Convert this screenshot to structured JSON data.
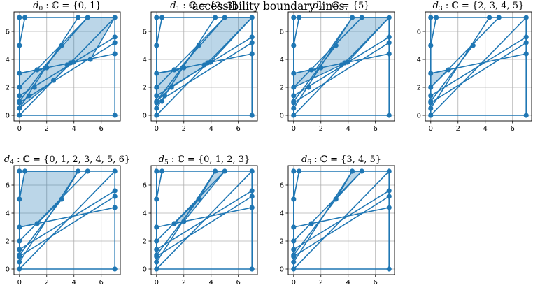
{
  "caption": "accessibility boundary lines.",
  "chart_data": {
    "type": "line",
    "grid": true,
    "xlim": [
      -0.4,
      7.4
    ],
    "ylim": [
      -0.4,
      7.4
    ],
    "xticks": [
      0,
      2,
      4,
      6
    ],
    "yticks": [
      0,
      2,
      4,
      6
    ],
    "colors": {
      "line": "#1f77b4",
      "fill": "#1f77b4",
      "grid": "#b0b0b0"
    },
    "lines": [
      [
        [
          0,
          0
        ],
        [
          7,
          0
        ]
      ],
      [
        [
          0,
          0
        ],
        [
          0,
          7
        ]
      ],
      [
        [
          0,
          7
        ],
        [
          7,
          7
        ]
      ],
      [
        [
          7,
          0
        ],
        [
          7,
          7
        ]
      ],
      [
        [
          0,
          5
        ],
        [
          0.4,
          7
        ]
      ],
      [
        [
          0,
          1
        ],
        [
          3.1,
          5
        ]
      ],
      [
        [
          0,
          0.5
        ],
        [
          4.3,
          7
        ]
      ],
      [
        [
          0,
          2
        ],
        [
          5,
          7
        ]
      ],
      [
        [
          0,
          0
        ],
        [
          7,
          7
        ]
      ],
      [
        [
          0,
          1.4
        ],
        [
          7,
          5.6
        ]
      ],
      [
        [
          0,
          0.9
        ],
        [
          7,
          5.2
        ]
      ],
      [
        [
          0,
          3
        ],
        [
          7,
          4.4
        ]
      ]
    ],
    "points": [
      [
        0,
        0
      ],
      [
        0,
        0.5
      ],
      [
        0,
        0.9
      ],
      [
        0,
        1
      ],
      [
        0,
        1.4
      ],
      [
        0,
        2
      ],
      [
        0,
        3
      ],
      [
        0,
        5
      ],
      [
        0,
        7
      ],
      [
        0.4,
        7
      ],
      [
        4.3,
        7
      ],
      [
        5,
        7
      ],
      [
        7,
        7
      ],
      [
        7,
        0
      ],
      [
        7,
        4.4
      ],
      [
        7,
        5.2
      ],
      [
        7,
        5.6
      ],
      [
        1.3,
        3.25
      ],
      [
        3.1,
        5
      ]
    ],
    "panels": [
      {
        "title": "d_0 : ℂ = {0, 1}",
        "sub": "0",
        "set": "{0, 1}",
        "regions": [
          [
            [
              0,
              3
            ],
            [
              1.2,
              3.25
            ],
            [
              1.6,
              3.25
            ],
            [
              5,
              7
            ],
            [
              7,
              7
            ],
            [
              5.2,
              4
            ],
            [
              3.8,
              3.75
            ],
            [
              2.5,
              2.5
            ],
            [
              0,
              0.5
            ]
          ]
        ],
        "extra_points": [
          [
            0.7,
            1.4
          ],
          [
            1.1,
            2
          ],
          [
            2.5,
            2.5
          ],
          [
            2,
            3.4
          ],
          [
            3.5,
            3.6
          ],
          [
            3.75,
            3.75
          ],
          [
            3.95,
            3.8
          ],
          [
            5.2,
            4
          ]
        ]
      },
      {
        "title": "d_1 : ℂ = {2, 3}",
        "sub": "1",
        "set": "{2, 3}",
        "regions": [
          [
            [
              0,
              3
            ],
            [
              1.6,
              3.25
            ],
            [
              5,
              7
            ],
            [
              7,
              7
            ],
            [
              3.95,
              3.8
            ],
            [
              1.1,
              2
            ],
            [
              0,
              1
            ]
          ]
        ],
        "extra_points": [
          [
            1.1,
            2
          ],
          [
            2,
            3.4
          ],
          [
            3.75,
            3.75
          ],
          [
            3.95,
            3.8
          ],
          [
            0.6,
            1.4
          ],
          [
            0.4,
            1
          ],
          [
            3.5,
            3.6
          ]
        ]
      },
      {
        "title": "d_2 : ℂ = {5}",
        "sub": "2",
        "set": "{5}",
        "regions": [
          [
            [
              0,
              3
            ],
            [
              1.2,
              3.25
            ],
            [
              1.6,
              3.25
            ],
            [
              4.3,
              7
            ],
            [
              7,
              7
            ],
            [
              3.95,
              3.8
            ],
            [
              3.5,
              3.6
            ],
            [
              0,
              2
            ]
          ]
        ],
        "extra_points": [
          [
            1.1,
            2
          ],
          [
            2,
            3.4
          ],
          [
            3.75,
            3.75
          ],
          [
            3.95,
            3.8
          ],
          [
            3.5,
            3.6
          ]
        ]
      },
      {
        "title": "d_3 : ℂ = {2, 3, 4, 5}",
        "sub": "3",
        "set": "{2, 3, 4, 5}",
        "regions": [
          [
            [
              0,
              3
            ],
            [
              1.3,
              3.25
            ],
            [
              0,
              2
            ]
          ]
        ],
        "extra_points": []
      },
      {
        "title": "d_4 : ℂ = {0, 1, 2, 3, 4, 5, 6}",
        "sub": "4",
        "set": "{0, 1, 2, 3, 4, 5, 6}",
        "regions": [
          [
            [
              0,
              3
            ],
            [
              1.3,
              3.25
            ],
            [
              3.1,
              5
            ],
            [
              4.3,
              7
            ],
            [
              0.4,
              7
            ],
            [
              0,
              5
            ]
          ]
        ],
        "extra_points": []
      },
      {
        "title": "d_5 : ℂ = {0, 1, 2, 3}",
        "sub": "5",
        "set": "{0, 1, 2, 3}",
        "regions": [
          [
            [
              1.3,
              3.25
            ],
            [
              2,
              3.4
            ],
            [
              5,
              7
            ],
            [
              4.3,
              7
            ],
            [
              3.1,
              5
            ]
          ]
        ],
        "extra_points": [
          [
            2,
            3.4
          ]
        ]
      },
      {
        "title": "d_6 : ℂ = {3, 4, 5}",
        "sub": "6",
        "set": "{3, 4, 5}",
        "regions": [
          [
            [
              3.1,
              5
            ],
            [
              4.3,
              7
            ],
            [
              5,
              7
            ]
          ]
        ],
        "extra_points": []
      }
    ]
  }
}
